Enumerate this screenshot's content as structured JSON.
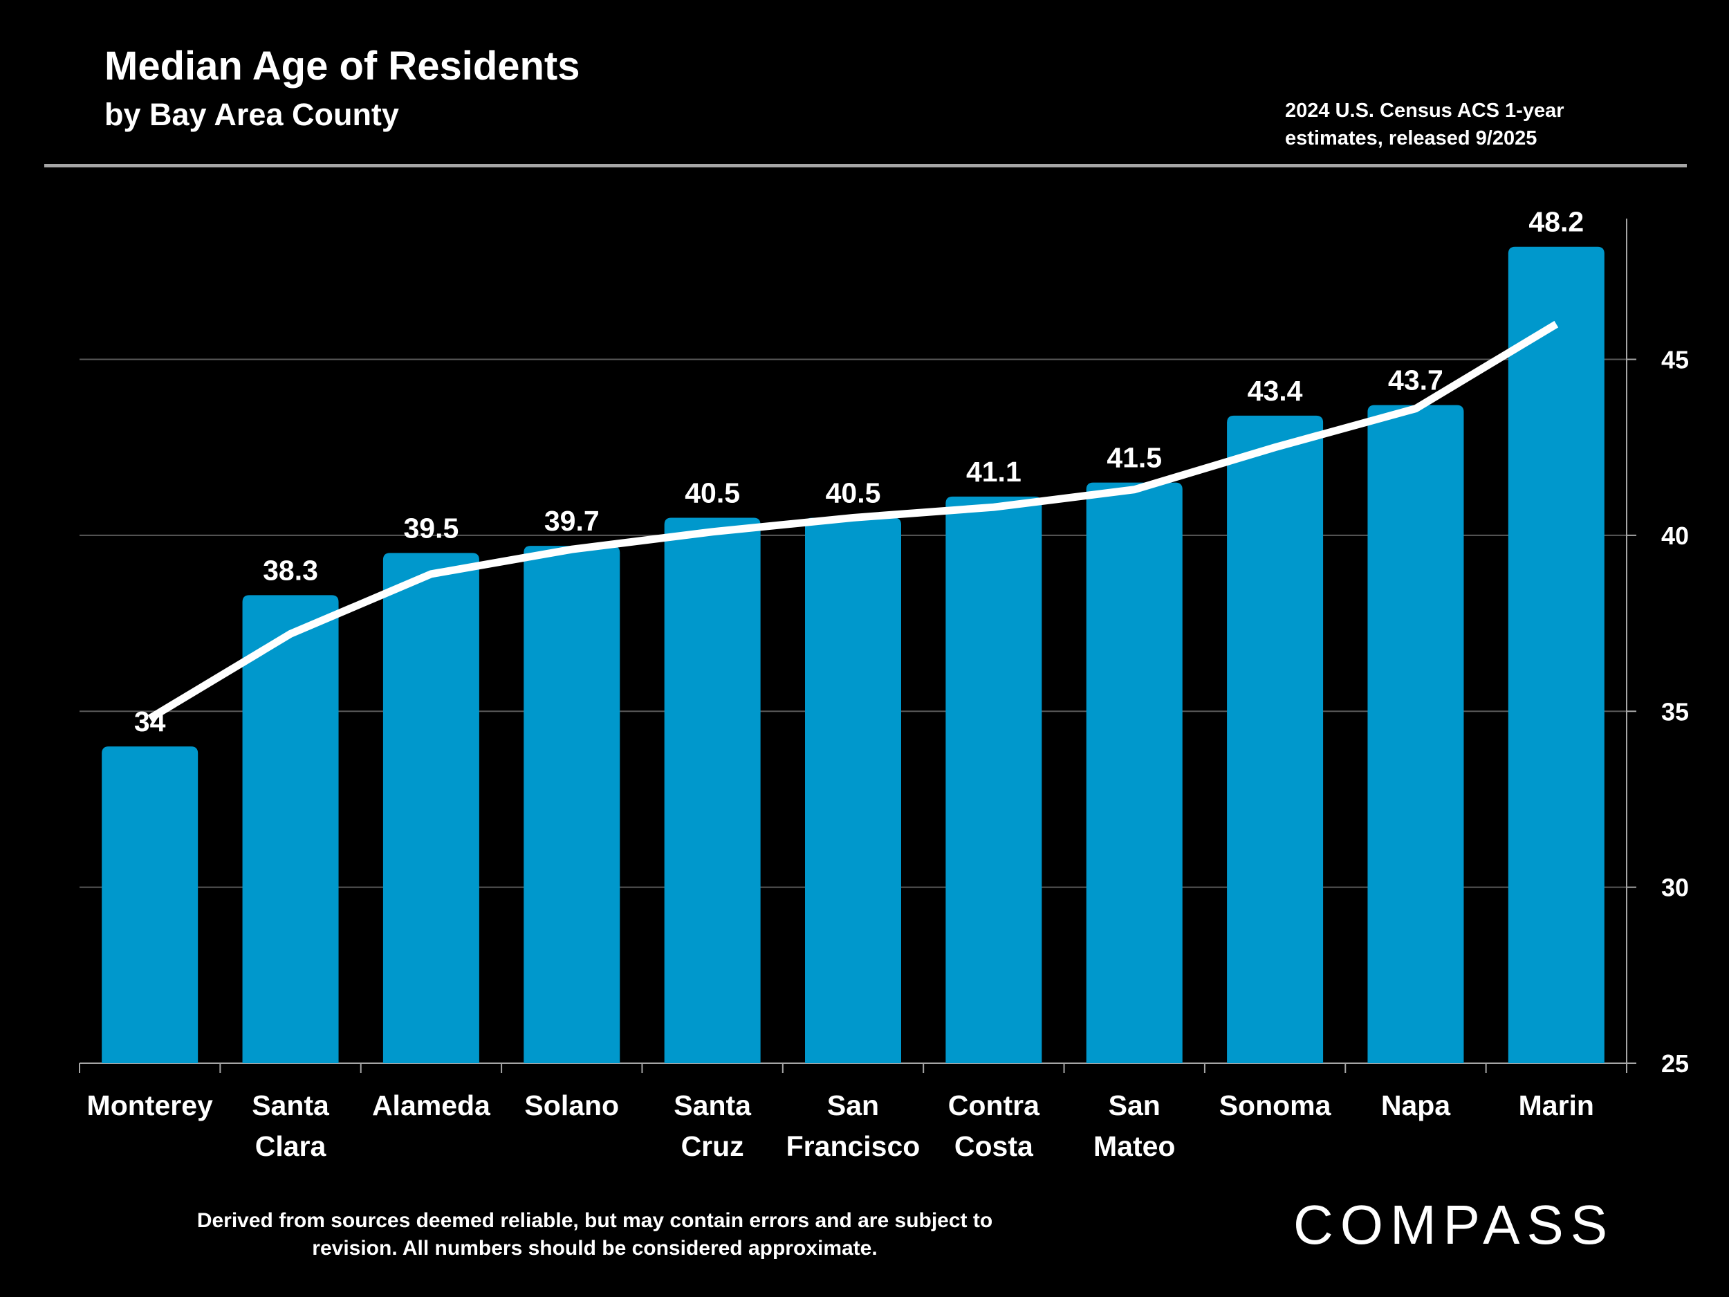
{
  "header": {
    "title": "Median Age of Residents",
    "subtitle": "by Bay Area County",
    "source_note_line1": "2024 U.S. Census ACS 1-year",
    "source_note_line2": "estimates, released 9/2025"
  },
  "footer": {
    "disclaimer_line1": "Derived from sources deemed reliable, but may contain errors and are subject to",
    "disclaimer_line2": "revision.  All numbers should be considered approximate.",
    "logo": "COMPASS"
  },
  "colors": {
    "bar": "#0098cc",
    "trend_line": "#ffffff",
    "grid": "#595959",
    "background": "#000000"
  },
  "chart_data": {
    "type": "bar",
    "title": "Median Age of Residents",
    "subtitle": "by Bay Area County",
    "categories": [
      [
        "Monterey"
      ],
      [
        "Santa",
        "Clara"
      ],
      [
        "Alameda"
      ],
      [
        "Solano"
      ],
      [
        "Santa",
        "Cruz"
      ],
      [
        "San",
        "Francisco"
      ],
      [
        "Contra",
        "Costa"
      ],
      [
        "San",
        "Mateo"
      ],
      [
        "Sonoma"
      ],
      [
        "Napa"
      ],
      [
        "Marin"
      ]
    ],
    "values": [
      34,
      38.3,
      39.5,
      39.7,
      40.5,
      40.5,
      41.1,
      41.5,
      43.4,
      43.7,
      48.2
    ],
    "data_labels": [
      "34",
      "38.3",
      "39.5",
      "39.7",
      "40.5",
      "40.5",
      "41.1",
      "41.5",
      "43.4",
      "43.7",
      "48.2"
    ],
    "trend_line": [
      34.8,
      37.2,
      38.9,
      39.6,
      40.1,
      40.5,
      40.8,
      41.3,
      42.5,
      43.6,
      46.0
    ],
    "y_axis_side": "right",
    "ylim": [
      25,
      49
    ],
    "yticks": [
      "25",
      "30",
      "35",
      "40",
      "45"
    ],
    "grid": true,
    "xlabel": "",
    "ylabel": ""
  }
}
